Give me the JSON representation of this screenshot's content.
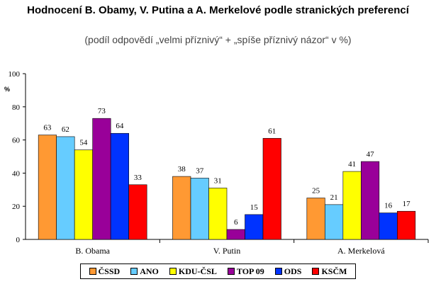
{
  "title": "Hodnocení B. Obamy, V. Putina a A. Merkelové podle stranických preferencí",
  "subtitle": "(podíl odpovědí „velmi příznivý“ + „spíše příznivý názor“ v %)",
  "chart_data": {
    "type": "bar",
    "title": "Hodnocení B. Obamy, V. Putina a A. Merkelové podle stranických preferencí",
    "subtitle": "(podíl odpovědí „velmi příznivý“ + „spíše příznivý názor“ v %)",
    "ylabel": "%",
    "ylim": [
      0,
      100
    ],
    "yticks": [
      0,
      20,
      40,
      60,
      80,
      100
    ],
    "categories": [
      "B. Obama",
      "V. Putin",
      "A. Merkelová"
    ],
    "series": [
      {
        "name": "ČSSD",
        "color": "#FF9933",
        "values": [
          63,
          38,
          25
        ]
      },
      {
        "name": "ANO",
        "color": "#66CCFF",
        "values": [
          62,
          37,
          21
        ]
      },
      {
        "name": "KDU-ČSL",
        "color": "#FFFF00",
        "values": [
          54,
          31,
          41
        ]
      },
      {
        "name": "TOP 09",
        "color": "#990099",
        "values": [
          73,
          6,
          47
        ]
      },
      {
        "name": "ODS",
        "color": "#0033FF",
        "values": [
          64,
          15,
          16
        ]
      },
      {
        "name": "KSČM",
        "color": "#FF0000",
        "values": [
          33,
          61,
          17
        ]
      }
    ],
    "grid": false,
    "legend_position": "bottom"
  }
}
